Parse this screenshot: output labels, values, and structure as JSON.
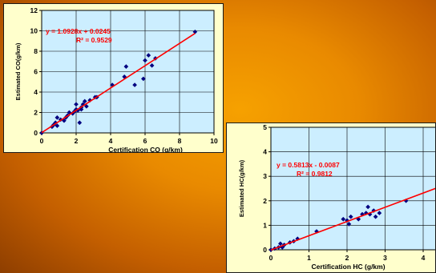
{
  "colors": {
    "panel_bg": "#ffffcc",
    "plot_bg": "#cceeff",
    "point": "#000080",
    "trendline": "#ff0000",
    "equation": "#ff0000"
  },
  "chart_data": [
    {
      "type": "scatter",
      "xlabel": "Certification CO (g/km)",
      "ylabel": "Estimated CO(g/km)",
      "xlim": [
        0,
        10
      ],
      "ylim": [
        0,
        12
      ],
      "xticks": [
        "0",
        "2",
        "4",
        "6",
        "8",
        "10"
      ],
      "yticks": [
        "0",
        "2",
        "4",
        "6",
        "8",
        "10",
        "12"
      ],
      "grid": true,
      "equation": "y = 1.0928x + 0.0245",
      "r2": "R² = 0.9529",
      "trendline": {
        "slope": 1.0928,
        "intercept": 0.0245,
        "x_range": [
          0,
          8.9
        ]
      },
      "points": [
        [
          0.0,
          0.0
        ],
        [
          0.6,
          0.6
        ],
        [
          0.7,
          0.8
        ],
        [
          0.8,
          1.0
        ],
        [
          0.9,
          0.7
        ],
        [
          0.9,
          1.5
        ],
        [
          1.1,
          1.3
        ],
        [
          1.3,
          1.2
        ],
        [
          1.4,
          1.5
        ],
        [
          1.5,
          1.7
        ],
        [
          1.6,
          2.0
        ],
        [
          1.8,
          1.9
        ],
        [
          1.9,
          2.1
        ],
        [
          2.0,
          2.8
        ],
        [
          2.0,
          2.3
        ],
        [
          2.1,
          2.2
        ],
        [
          2.2,
          1.0
        ],
        [
          2.3,
          2.3
        ],
        [
          2.3,
          2.5
        ],
        [
          2.4,
          2.8
        ],
        [
          2.5,
          3.1
        ],
        [
          2.6,
          2.6
        ],
        [
          2.8,
          3.2
        ],
        [
          3.1,
          3.5
        ],
        [
          3.2,
          3.5
        ],
        [
          4.1,
          4.7
        ],
        [
          4.8,
          5.5
        ],
        [
          4.9,
          6.5
        ],
        [
          5.4,
          4.7
        ],
        [
          5.9,
          5.3
        ],
        [
          6.0,
          7.1
        ],
        [
          6.2,
          7.6
        ],
        [
          6.4,
          6.6
        ],
        [
          6.6,
          7.3
        ],
        [
          8.9,
          9.9
        ]
      ]
    },
    {
      "type": "scatter",
      "xlabel": "Certification HC (g/km)",
      "ylabel": "Estimated HC(g/km)",
      "xlim": [
        0,
        4.4
      ],
      "ylim": [
        0,
        5
      ],
      "xticks": [
        "0",
        "1",
        "2",
        "3",
        "4"
      ],
      "yticks": [
        "0",
        "1",
        "2",
        "3",
        "4",
        "5"
      ],
      "grid": true,
      "equation": "y = 0.5813x - 0.0087",
      "r2": "R² = 0.9812",
      "trendline": {
        "slope": 0.5813,
        "intercept": -0.0087,
        "x_range": [
          0,
          4.4
        ]
      },
      "points": [
        [
          0.0,
          0.0
        ],
        [
          0.1,
          0.05
        ],
        [
          0.2,
          0.1
        ],
        [
          0.25,
          0.25
        ],
        [
          0.3,
          0.1
        ],
        [
          0.35,
          0.2
        ],
        [
          0.5,
          0.3
        ],
        [
          0.6,
          0.35
        ],
        [
          0.7,
          0.45
        ],
        [
          1.2,
          0.75
        ],
        [
          1.9,
          1.25
        ],
        [
          2.0,
          1.2
        ],
        [
          2.05,
          1.05
        ],
        [
          2.1,
          1.35
        ],
        [
          2.3,
          1.25
        ],
        [
          2.4,
          1.45
        ],
        [
          2.5,
          1.5
        ],
        [
          2.55,
          1.75
        ],
        [
          2.6,
          1.45
        ],
        [
          2.7,
          1.6
        ],
        [
          2.75,
          1.35
        ],
        [
          2.85,
          1.5
        ],
        [
          3.55,
          2.0
        ]
      ]
    }
  ]
}
